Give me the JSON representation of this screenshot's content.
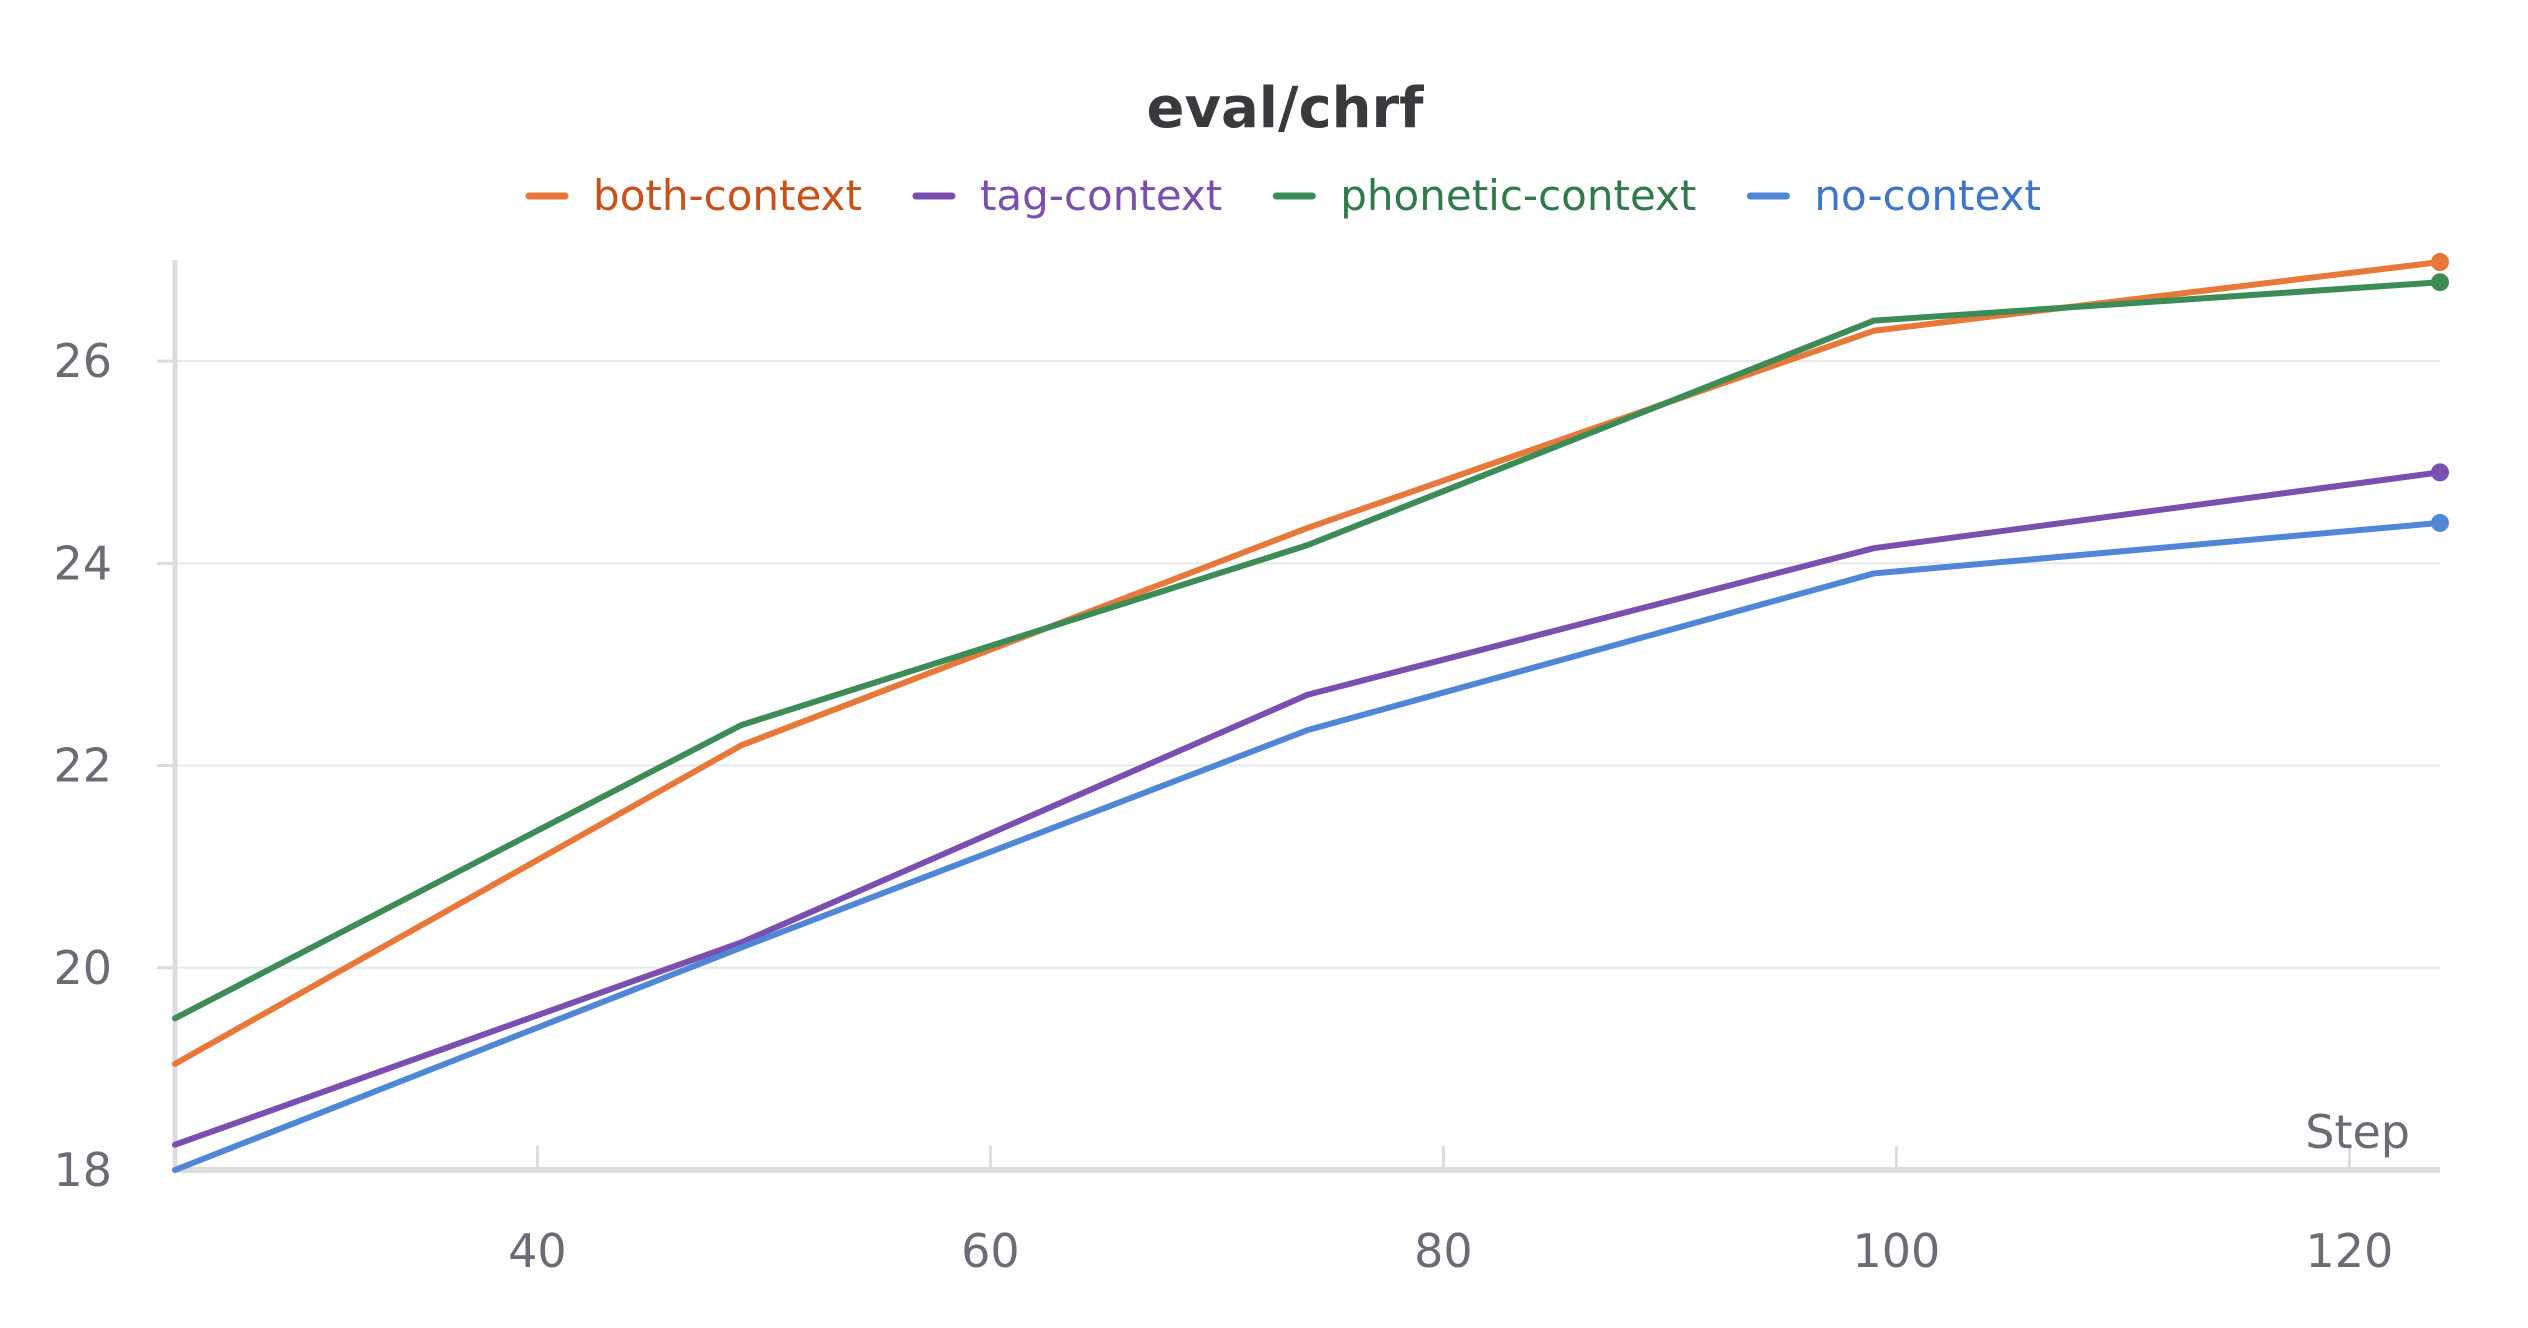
{
  "chart_data": {
    "type": "line",
    "title": "eval/chrf",
    "xlabel": "Step",
    "ylabel": "",
    "x": [
      24,
      49,
      74,
      99,
      124
    ],
    "xlim": [
      24,
      124
    ],
    "ylim": [
      18,
      27
    ],
    "xticks": [
      40,
      60,
      80,
      100,
      120
    ],
    "yticks": [
      18,
      20,
      22,
      24,
      26
    ],
    "grid": true,
    "legend_position": "top-center",
    "series": [
      {
        "name": "both-context",
        "color": "#e8783a",
        "text_color": "#c8501a",
        "values": [
          19.05,
          22.2,
          24.35,
          26.3,
          26.98
        ]
      },
      {
        "name": "tag-context",
        "color": "#7b4faf",
        "text_color": "#7b4faf",
        "values": [
          18.25,
          20.25,
          22.7,
          24.15,
          24.9
        ]
      },
      {
        "name": "phonetic-context",
        "color": "#3d8c57",
        "text_color": "#2f7a48",
        "values": [
          19.5,
          22.4,
          24.18,
          26.4,
          26.78
        ]
      },
      {
        "name": "no-context",
        "color": "#4f86d6",
        "text_color": "#3f75c8",
        "values": [
          18.0,
          20.2,
          22.35,
          23.9,
          24.4
        ]
      }
    ]
  }
}
